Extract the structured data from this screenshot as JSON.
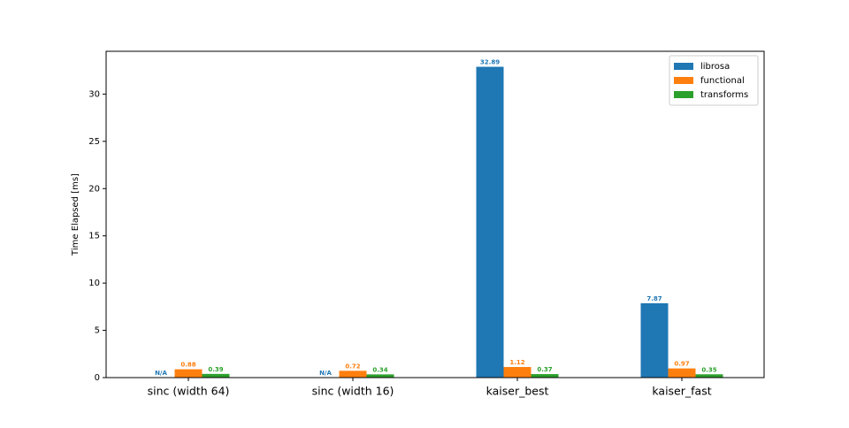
{
  "chart_data": {
    "type": "bar",
    "ylabel": "Time Elapsed [ms]",
    "categories": [
      "sinc (width 64)",
      "sinc (width 16)",
      "kaiser_best",
      "kaiser_fast"
    ],
    "series": [
      {
        "name": "librosa",
        "color": "#1f77b4",
        "values": [
          null,
          null,
          32.89,
          7.87
        ],
        "value_labels": [
          "N/A",
          "N/A",
          "32.89",
          "7.87"
        ]
      },
      {
        "name": "functional",
        "color": "#ff7f0e",
        "values": [
          0.88,
          0.72,
          1.12,
          0.97
        ]
      },
      {
        "name": "transforms",
        "color": "#2ca02c",
        "values": [
          0.39,
          0.34,
          0.37,
          0.35
        ]
      }
    ],
    "ylim": [
      0,
      34.53
    ],
    "yticks": [
      0,
      5,
      10,
      15,
      20,
      25,
      30
    ],
    "grid": false,
    "legend": "upper right"
  }
}
